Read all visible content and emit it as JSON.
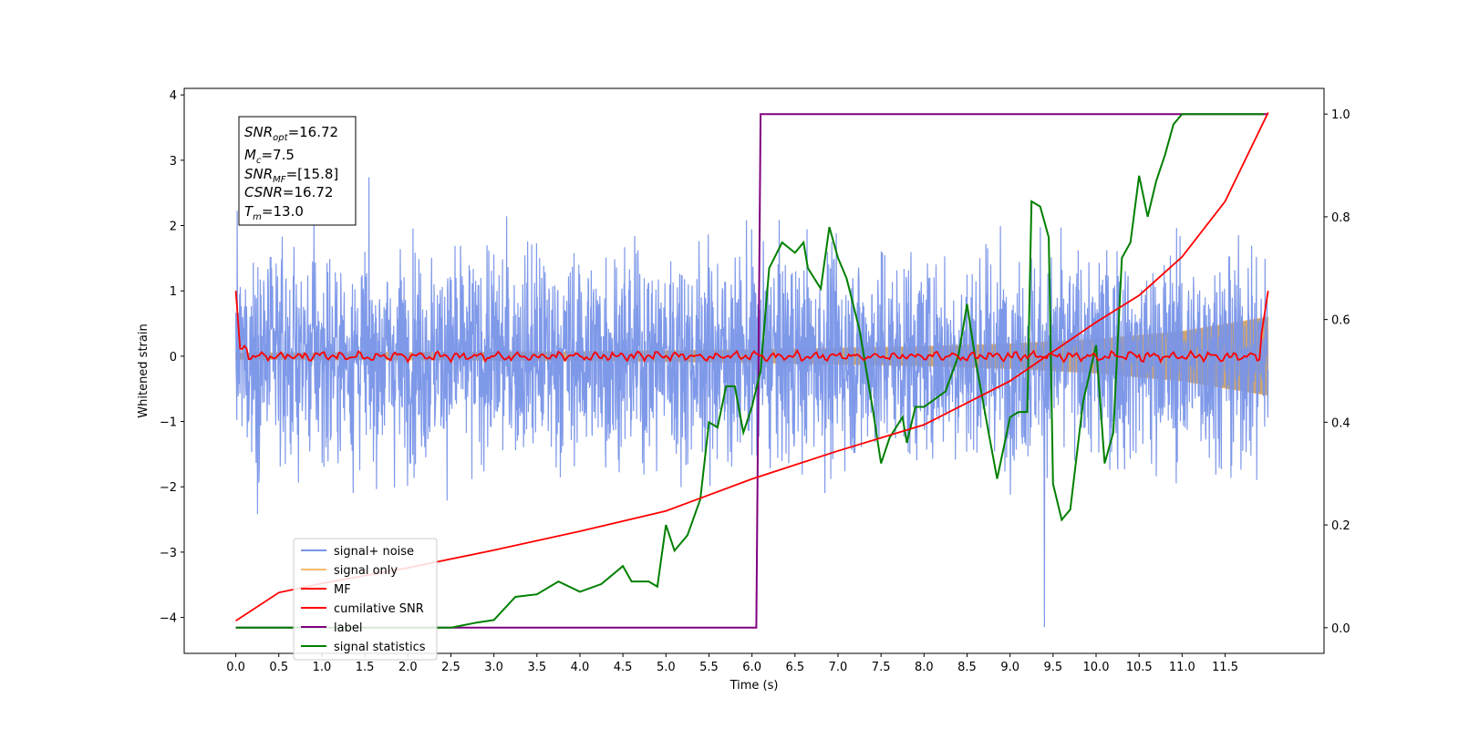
{
  "chart_data": {
    "type": "line",
    "xlabel": "Time (s)",
    "ylabel": "Whitened strain",
    "xlim": [
      -0.6,
      12.65
    ],
    "ylim": [
      -4.55,
      4.1
    ],
    "ylim_right": [
      -0.05,
      1.05
    ],
    "grid": false,
    "legend_position": "lower-left",
    "x_ticks": [
      "0.0",
      "0.5",
      "1.0",
      "1.5",
      "2.0",
      "2.5",
      "3.0",
      "3.5",
      "4.0",
      "4.5",
      "5.0",
      "5.5",
      "6.0",
      "6.5",
      "7.0",
      "7.5",
      "8.0",
      "8.5",
      "9.0",
      "9.5",
      "10.0",
      "10.5",
      "11.0",
      "11.5"
    ],
    "y_ticks_left": [
      "−4",
      "−3",
      "−2",
      "−1",
      "0",
      "1",
      "2",
      "3",
      "4"
    ],
    "y_ticks_right": [
      "0.0",
      "0.2",
      "0.4",
      "0.6",
      "0.8",
      "1.0"
    ],
    "info_box": {
      "snr_opt_base": "SNR",
      "snr_opt_sub": "opt",
      "snr_opt_value": "=16.72",
      "mc_base": "M",
      "mc_sub": "c",
      "mc_value": "=7.5",
      "snr_mf_base": "SNR",
      "snr_mf_sub": "MF",
      "snr_mf_value": "=[15.8]",
      "csnr_base": "CSNR",
      "csnr_value": "=16.72",
      "tm_base": "T",
      "tm_sub": "m",
      "tm_value": "=13.0"
    },
    "series": [
      {
        "name": "signal+ noise",
        "axis": "left",
        "color": "#7894e8",
        "description_values": "dense noise time series, t 0.0–12.0 s, sample range about −4.2 to 3.0, typical band ±1.5",
        "t_range": [
          0.0,
          12.0
        ],
        "envelope_peak": [
          -4.15,
          2.92
        ]
      },
      {
        "name": "signal only",
        "axis": "left",
        "color": "#f5b96a",
        "t_range": [
          0.0,
          12.0
        ],
        "amplitude_envelope": [
          [
            0.0,
            0.05
          ],
          [
            4.0,
            0.07
          ],
          [
            6.0,
            0.1
          ],
          [
            8.0,
            0.15
          ],
          [
            9.0,
            0.19
          ],
          [
            10.0,
            0.26
          ],
          [
            11.0,
            0.38
          ],
          [
            12.0,
            0.6
          ]
        ]
      },
      {
        "name": "MF",
        "axis": "left",
        "color": "#ff0000",
        "points": [
          [
            0.0,
            1.0
          ],
          [
            0.05,
            0.1
          ],
          [
            0.2,
            -0.05
          ],
          [
            2.0,
            0.02
          ],
          [
            4.0,
            -0.03
          ],
          [
            6.0,
            0.03
          ],
          [
            8.0,
            -0.02
          ],
          [
            10.0,
            0.03
          ],
          [
            11.9,
            0.15
          ],
          [
            12.0,
            1.0
          ]
        ]
      },
      {
        "name": "cumilative SNR",
        "axis": "left",
        "color": "#ff0000",
        "points": [
          [
            0.0,
            -4.05
          ],
          [
            0.5,
            -3.62
          ],
          [
            1.0,
            -3.48
          ],
          [
            2.0,
            -3.24
          ],
          [
            3.0,
            -2.97
          ],
          [
            4.0,
            -2.68
          ],
          [
            5.0,
            -2.37
          ],
          [
            6.0,
            -1.88
          ],
          [
            7.0,
            -1.45
          ],
          [
            8.0,
            -1.05
          ],
          [
            9.0,
            -0.38
          ],
          [
            10.0,
            0.52
          ],
          [
            10.5,
            0.93
          ],
          [
            11.0,
            1.52
          ],
          [
            11.5,
            2.37
          ],
          [
            12.0,
            3.73
          ]
        ]
      },
      {
        "name": "label",
        "axis": "right",
        "color": "#7f007f",
        "points": [
          [
            0.0,
            0.0
          ],
          [
            6.05,
            0.0
          ],
          [
            6.1,
            1.0
          ],
          [
            12.0,
            1.0
          ]
        ]
      },
      {
        "name": "signal statistics",
        "axis": "right",
        "color": "#008000",
        "points": [
          [
            0.0,
            0.0
          ],
          [
            1.0,
            0.0
          ],
          [
            2.5,
            0.0
          ],
          [
            2.8,
            0.01
          ],
          [
            3.0,
            0.015
          ],
          [
            3.25,
            0.06
          ],
          [
            3.5,
            0.065
          ],
          [
            3.75,
            0.09
          ],
          [
            4.0,
            0.07
          ],
          [
            4.25,
            0.085
          ],
          [
            4.5,
            0.12
          ],
          [
            4.6,
            0.09
          ],
          [
            4.8,
            0.09
          ],
          [
            4.9,
            0.08
          ],
          [
            5.0,
            0.2
          ],
          [
            5.1,
            0.15
          ],
          [
            5.25,
            0.18
          ],
          [
            5.4,
            0.25
          ],
          [
            5.5,
            0.4
          ],
          [
            5.6,
            0.39
          ],
          [
            5.7,
            0.47
          ],
          [
            5.8,
            0.47
          ],
          [
            5.9,
            0.38
          ],
          [
            6.0,
            0.43
          ],
          [
            6.1,
            0.5
          ],
          [
            6.2,
            0.7
          ],
          [
            6.35,
            0.75
          ],
          [
            6.5,
            0.73
          ],
          [
            6.6,
            0.75
          ],
          [
            6.65,
            0.7
          ],
          [
            6.8,
            0.66
          ],
          [
            6.9,
            0.78
          ],
          [
            7.0,
            0.72
          ],
          [
            7.1,
            0.68
          ],
          [
            7.25,
            0.58
          ],
          [
            7.4,
            0.43
          ],
          [
            7.5,
            0.32
          ],
          [
            7.6,
            0.37
          ],
          [
            7.75,
            0.41
          ],
          [
            7.8,
            0.36
          ],
          [
            7.9,
            0.43
          ],
          [
            8.0,
            0.43
          ],
          [
            8.25,
            0.46
          ],
          [
            8.4,
            0.53
          ],
          [
            8.5,
            0.63
          ],
          [
            8.6,
            0.52
          ],
          [
            8.75,
            0.38
          ],
          [
            8.85,
            0.29
          ],
          [
            9.0,
            0.41
          ],
          [
            9.1,
            0.42
          ],
          [
            9.2,
            0.42
          ],
          [
            9.25,
            0.83
          ],
          [
            9.35,
            0.82
          ],
          [
            9.45,
            0.76
          ],
          [
            9.5,
            0.28
          ],
          [
            9.6,
            0.21
          ],
          [
            9.7,
            0.23
          ],
          [
            9.85,
            0.44
          ],
          [
            10.0,
            0.55
          ],
          [
            10.1,
            0.32
          ],
          [
            10.2,
            0.38
          ],
          [
            10.3,
            0.72
          ],
          [
            10.4,
            0.75
          ],
          [
            10.5,
            0.88
          ],
          [
            10.6,
            0.8
          ],
          [
            10.7,
            0.87
          ],
          [
            10.8,
            0.92
          ],
          [
            10.9,
            0.98
          ],
          [
            11.0,
            1.0
          ],
          [
            11.5,
            1.0
          ],
          [
            11.95,
            1.0
          ]
        ]
      }
    ]
  },
  "legend": {
    "signal_noise": "signal+ noise",
    "signal_only": "signal only",
    "mf": "MF",
    "cumulative_snr": "cumilative SNR",
    "label": "label",
    "signal_statistics": "signal statistics"
  },
  "colors": {
    "signal_noise": "#7894e8",
    "signal_only": "#f5b96a",
    "mf": "#ff0000",
    "cumulative_snr": "#ff0000",
    "label": "#7f007f",
    "signal_statistics": "#008000"
  }
}
